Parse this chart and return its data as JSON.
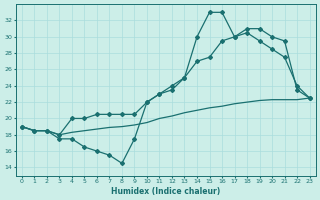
{
  "xlabel": "Humidex (Indice chaleur)",
  "ylabel": "",
  "bg_color": "#cceee8",
  "line_color": "#1a7070",
  "grid_color": "#aadddd",
  "xlim": [
    -0.5,
    23.5
  ],
  "ylim": [
    13,
    34
  ],
  "yticks": [
    14,
    16,
    18,
    20,
    22,
    24,
    26,
    28,
    30,
    32
  ],
  "xticks": [
    0,
    1,
    2,
    3,
    4,
    5,
    6,
    7,
    8,
    9,
    10,
    11,
    12,
    13,
    14,
    15,
    16,
    17,
    18,
    19,
    20,
    21,
    22,
    23
  ],
  "line1_x": [
    0,
    1,
    2,
    3,
    4,
    5,
    6,
    7,
    8,
    9,
    10,
    11,
    12,
    13,
    14,
    15,
    16,
    17,
    18,
    19,
    20,
    21,
    22,
    23
  ],
  "line1_y": [
    19.0,
    18.5,
    18.5,
    17.5,
    17.5,
    16.5,
    16.0,
    15.5,
    14.5,
    17.5,
    22.0,
    23.0,
    23.5,
    25.0,
    30.0,
    33.0,
    33.0,
    30.0,
    31.0,
    31.0,
    30.0,
    29.5,
    23.5,
    22.5
  ],
  "line2_x": [
    0,
    1,
    2,
    3,
    4,
    5,
    6,
    7,
    8,
    9,
    10,
    11,
    12,
    13,
    14,
    15,
    16,
    17,
    18,
    19,
    20,
    21,
    22,
    23
  ],
  "line2_y": [
    19.0,
    18.5,
    18.5,
    18.0,
    20.0,
    20.0,
    20.5,
    20.5,
    20.5,
    20.5,
    22.0,
    23.0,
    24.0,
    25.0,
    27.0,
    27.5,
    29.5,
    30.0,
    30.5,
    29.5,
    28.5,
    27.5,
    24.0,
    22.5
  ],
  "line3_x": [
    0,
    1,
    2,
    3,
    4,
    5,
    6,
    7,
    8,
    9,
    10,
    11,
    12,
    13,
    14,
    15,
    16,
    17,
    18,
    19,
    20,
    21,
    22,
    23
  ],
  "line3_y": [
    19.0,
    18.5,
    18.5,
    18.0,
    18.3,
    18.5,
    18.7,
    18.9,
    19.0,
    19.2,
    19.5,
    20.0,
    20.3,
    20.7,
    21.0,
    21.3,
    21.5,
    21.8,
    22.0,
    22.2,
    22.3,
    22.3,
    22.3,
    22.5
  ],
  "marker": "D",
  "markersize": 2.0,
  "linewidth": 0.9
}
